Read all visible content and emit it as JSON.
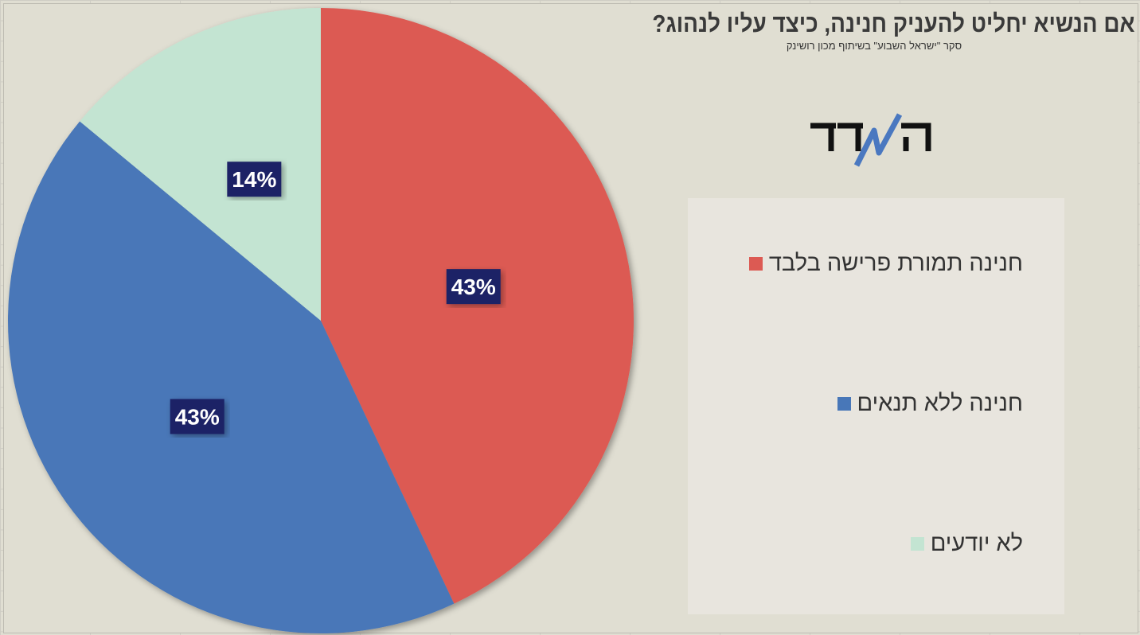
{
  "chart_data": {
    "type": "pie",
    "title": "אם הנשיא יחליט להעניק חנינה, כיצד עליו לנהוג?",
    "subtitle": "סקר \"ישראל השבוע\" בשיתוף מכון רושינק",
    "slices": [
      {
        "label": "חנינה תמורת פרישה בלבד",
        "value": 43,
        "data_label": "43%",
        "color": "#dc5a53"
      },
      {
        "label": "חנינה ללא תנאים",
        "value": 43,
        "data_label": "43%",
        "color": "#4877b8"
      },
      {
        "label": "לא יודעים",
        "value": 14,
        "data_label": "14%",
        "color": "#c3e4d2"
      }
    ],
    "legend_position": "right",
    "label_bg": "#1c2366"
  },
  "logo_text": "המדד"
}
